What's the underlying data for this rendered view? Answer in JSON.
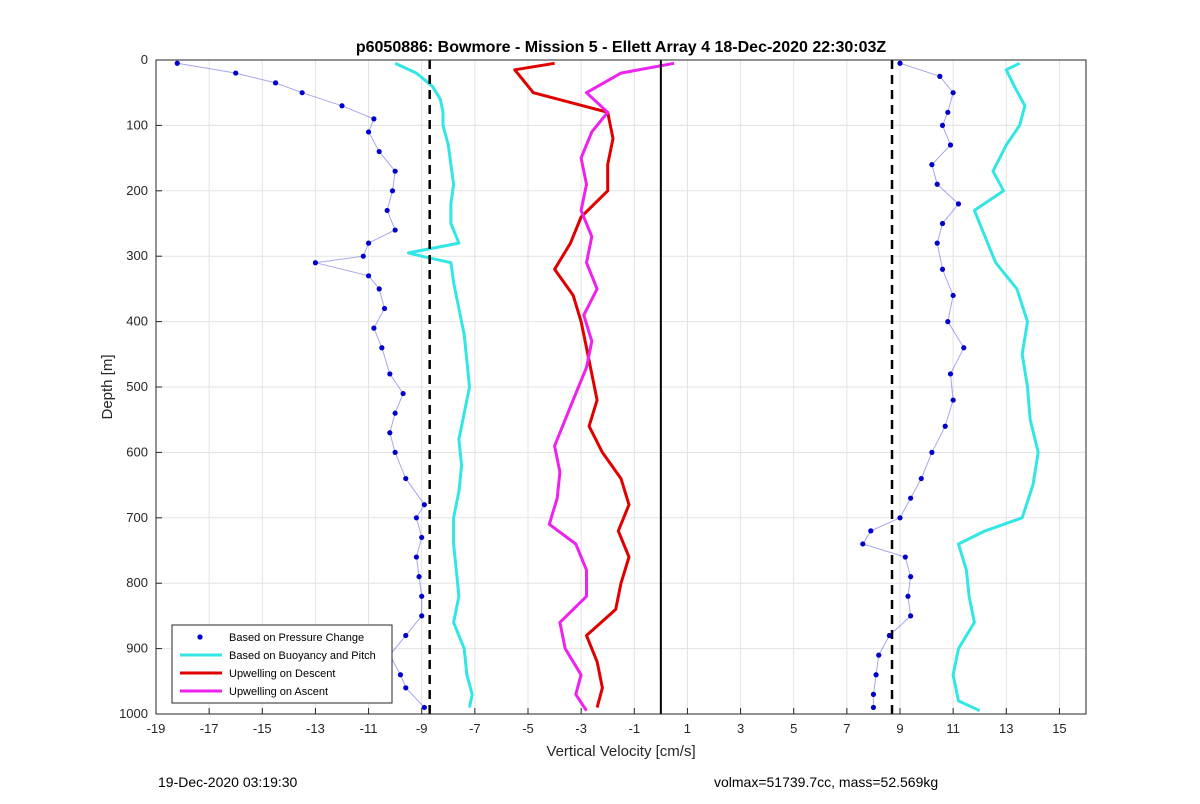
{
  "footer": {
    "timestamp": "19-Dec-2020 03:19:30",
    "volmax_mass": "volmax=51739.7cc, mass=52.569kg"
  },
  "chart_data": {
    "type": "scatter",
    "title": "p6050886: Bowmore - Mission 5 - Ellett Array 4 18-Dec-2020 22:30:03Z",
    "xlabel": "Vertical Velocity [cm/s]",
    "ylabel": "Depth [m]",
    "xlim": [
      -19,
      16
    ],
    "ylim": [
      0,
      1000
    ],
    "y_reversed": true,
    "grid": true,
    "xticks": [
      "-19",
      "-17",
      "-15",
      "-13",
      "-11",
      "-9",
      "-7",
      "-5",
      "-3",
      "-1",
      "1",
      "3",
      "5",
      "7",
      "9",
      "11",
      "13",
      "15"
    ],
    "yticks": [
      "0",
      "100",
      "200",
      "300",
      "400",
      "500",
      "600",
      "700",
      "800",
      "900",
      "1000"
    ],
    "legend_position": "bottom-left",
    "legend": [
      {
        "label": "Based on Pressure Change",
        "color": "#0000cc",
        "style": "dot"
      },
      {
        "label": "Based on Buoyancy and Pitch",
        "color": "#33e6e6",
        "style": "line"
      },
      {
        "label": "Upwelling on Descent",
        "color": "#e00000",
        "style": "line"
      },
      {
        "label": "Upwelling on Ascent",
        "color": "#ee22ee",
        "style": "line"
      }
    ],
    "reference_lines": [
      {
        "name": "dashed-left",
        "x": -8.7,
        "style": "dashed",
        "color": "#000000"
      },
      {
        "name": "dashed-right",
        "x": 8.7,
        "style": "dashed",
        "color": "#000000"
      },
      {
        "name": "solid-center",
        "x": 0,
        "style": "solid",
        "color": "#000000"
      }
    ],
    "series": [
      {
        "key": "buoyancy_descent",
        "color": "#33e6e6",
        "depth": [
          5,
          20,
          40,
          60,
          80,
          100,
          130,
          160,
          190,
          220,
          250,
          280,
          295,
          300,
          310,
          340,
          380,
          420,
          460,
          500,
          540,
          580,
          620,
          660,
          700,
          740,
          780,
          820,
          860,
          900,
          940,
          970,
          990
        ],
        "values": [
          -10,
          -9.2,
          -8.6,
          -8.3,
          -8.2,
          -8.2,
          -8.0,
          -7.9,
          -7.8,
          -7.9,
          -7.9,
          -7.6,
          -9.5,
          -9.0,
          -7.9,
          -7.8,
          -7.6,
          -7.4,
          -7.3,
          -7.2,
          -7.4,
          -7.6,
          -7.5,
          -7.6,
          -7.8,
          -7.8,
          -7.7,
          -7.6,
          -7.8,
          -7.4,
          -7.3,
          -7.1,
          -7.2
        ]
      },
      {
        "key": "buoyancy_ascent",
        "color": "#33e6e6",
        "depth": [
          5,
          15,
          40,
          70,
          100,
          130,
          170,
          200,
          230,
          270,
          310,
          350,
          400,
          450,
          500,
          550,
          600,
          650,
          700,
          720,
          740,
          780,
          820,
          860,
          900,
          940,
          980,
          995
        ],
        "values": [
          13.5,
          13.0,
          13.3,
          13.7,
          13.5,
          13.0,
          12.5,
          12.9,
          11.8,
          12.2,
          12.6,
          13.4,
          13.8,
          13.6,
          13.8,
          13.9,
          14.2,
          14.0,
          13.6,
          12.2,
          11.2,
          11.5,
          11.6,
          11.8,
          11.2,
          11.0,
          11.2,
          12.0
        ]
      },
      {
        "key": "upwelling_descent",
        "color": "#e00000",
        "depth": [
          5,
          15,
          30,
          50,
          80,
          120,
          160,
          200,
          240,
          280,
          320,
          360,
          400,
          440,
          480,
          520,
          560,
          600,
          640,
          680,
          720,
          760,
          800,
          840,
          880,
          920,
          960,
          990
        ],
        "values": [
          -4.0,
          -5.5,
          -5.2,
          -4.8,
          -2.0,
          -1.8,
          -2.0,
          -2.0,
          -3.0,
          -3.4,
          -4.0,
          -3.3,
          -3.0,
          -2.8,
          -2.6,
          -2.4,
          -2.7,
          -2.2,
          -1.5,
          -1.2,
          -1.6,
          -1.2,
          -1.5,
          -1.7,
          -2.8,
          -2.4,
          -2.2,
          -2.4
        ]
      },
      {
        "key": "upwelling_ascent",
        "color": "#ee22ee",
        "depth": [
          5,
          20,
          50,
          80,
          110,
          150,
          190,
          230,
          270,
          310,
          350,
          390,
          430,
          470,
          510,
          550,
          590,
          630,
          670,
          710,
          740,
          780,
          820,
          860,
          900,
          940,
          970,
          995
        ],
        "values": [
          0.5,
          -1.5,
          -2.8,
          -2.0,
          -2.6,
          -3.0,
          -2.8,
          -3.0,
          -2.6,
          -2.8,
          -2.4,
          -2.9,
          -2.6,
          -2.8,
          -3.2,
          -3.6,
          -4.0,
          -3.8,
          -3.9,
          -4.2,
          -3.2,
          -2.8,
          -2.8,
          -3.8,
          -3.6,
          -3.0,
          -3.2,
          -2.8
        ]
      },
      {
        "key": "pressure_descent",
        "color": "#0000cc",
        "depth": [
          5,
          20,
          35,
          50,
          70,
          90,
          110,
          140,
          170,
          200,
          230,
          260,
          280,
          300,
          310,
          330,
          350,
          380,
          410,
          440,
          480,
          510,
          540,
          570,
          600,
          640,
          680,
          700,
          730,
          760,
          790,
          820,
          850,
          880,
          910,
          940,
          960,
          990
        ],
        "values": [
          -18.2,
          -16.0,
          -14.5,
          -13.5,
          -12.0,
          -10.8,
          -11.0,
          -10.6,
          -10.0,
          -10.1,
          -10.3,
          -10.0,
          -11.0,
          -11.2,
          -13.0,
          -11.0,
          -10.6,
          -10.4,
          -10.8,
          -10.5,
          -10.2,
          -9.7,
          -10.0,
          -10.2,
          -10.0,
          -9.6,
          -8.9,
          -9.2,
          -9.0,
          -9.2,
          -9.1,
          -9.0,
          -9.0,
          -9.6,
          -10.2,
          -9.8,
          -9.6,
          -8.9
        ]
      },
      {
        "key": "pressure_ascent",
        "color": "#0000cc",
        "depth": [
          5,
          25,
          50,
          80,
          100,
          130,
          160,
          190,
          220,
          250,
          280,
          320,
          360,
          400,
          440,
          480,
          520,
          560,
          600,
          640,
          670,
          700,
          720,
          740,
          760,
          790,
          820,
          850,
          880,
          910,
          940,
          970,
          990
        ],
        "values": [
          9.0,
          10.5,
          11.0,
          10.8,
          10.6,
          10.9,
          10.2,
          10.4,
          11.2,
          10.6,
          10.4,
          10.6,
          11.0,
          10.8,
          11.4,
          10.9,
          11.0,
          10.7,
          10.2,
          9.8,
          9.4,
          9.0,
          7.9,
          7.6,
          9.2,
          9.4,
          9.3,
          9.4,
          8.6,
          8.2,
          8.1,
          8.0,
          8.0
        ]
      }
    ]
  }
}
